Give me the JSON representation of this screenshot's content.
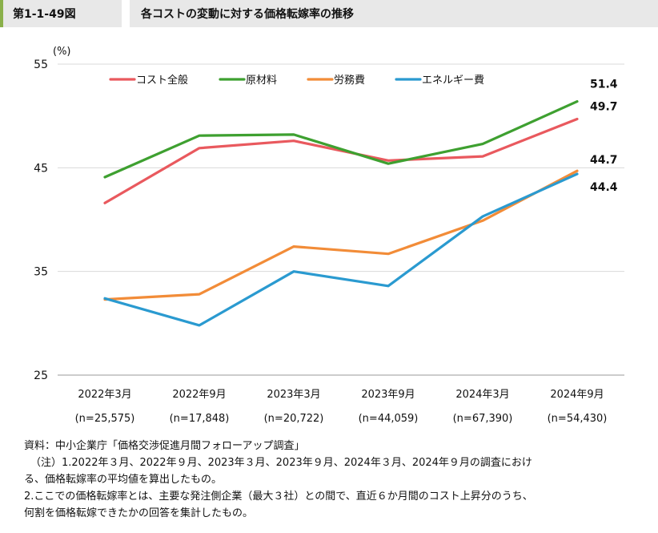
{
  "header": {
    "figure_id": "第1-1-49図",
    "title": "各コストの変動に対する価格転嫁率の推移"
  },
  "chart_data": {
    "type": "line",
    "ylabel": "(%)",
    "ylim": [
      25,
      55
    ],
    "yticks": [
      "25",
      "35",
      "45",
      "55"
    ],
    "categories": [
      "2022年3月",
      "2022年9月",
      "2023年3月",
      "2023年9月",
      "2024年3月",
      "2024年9月"
    ],
    "sample_sizes": [
      "(n=25,575)",
      "(n=17,848)",
      "(n=20,722)",
      "(n=44,059)",
      "(n=67,390)",
      "(n=54,430)"
    ],
    "legend_position": "top",
    "grid": true,
    "series": [
      {
        "name": "コスト全般",
        "color": "#e9595e",
        "values": [
          41.6,
          46.9,
          47.6,
          45.7,
          46.1,
          49.7
        ],
        "end_label": "49.7"
      },
      {
        "name": "原材料",
        "color": "#3ea030",
        "values": [
          44.1,
          48.1,
          48.2,
          45.4,
          47.3,
          51.4
        ],
        "end_label": "51.4"
      },
      {
        "name": "労務費",
        "color": "#f28c38",
        "values": [
          32.3,
          32.8,
          37.4,
          36.7,
          39.9,
          44.7
        ],
        "end_label": "44.7"
      },
      {
        "name": "エネルギー費",
        "color": "#2a9ad0",
        "values": [
          32.4,
          29.8,
          35.0,
          33.6,
          40.3,
          44.4
        ],
        "end_label": "44.4"
      }
    ]
  },
  "notes": {
    "source": "資料：中小企業庁「価格交渉促進月間フォローアップ調査」",
    "note1a": "（注）1.2022年３月、2022年９月、2023年３月、2023年９月、2024年３月、2024年９月の調査におけ",
    "note1b": "る、価格転嫁率の平均値を算出したもの。",
    "note2a": "2.ここでの価格転嫁率とは、主要な発注側企業（最大３社）との間で、直近６か月間のコスト上昇分のうち、",
    "note2b": "何割を価格転嫁できたかの回答を集計したもの。"
  }
}
